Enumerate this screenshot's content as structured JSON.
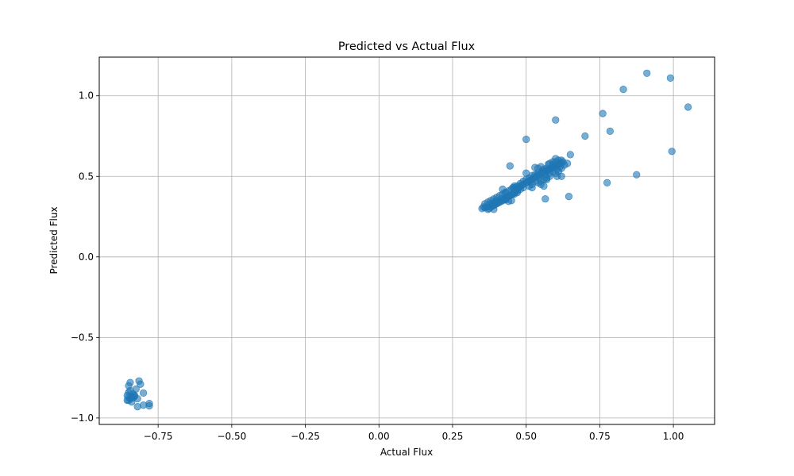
{
  "colors": {
    "point": "#1f77b4",
    "grid": "#b0b0b0",
    "axis": "#000000",
    "background": "#ffffff"
  },
  "chart_data": {
    "type": "scatter",
    "title": "Predicted vs Actual Flux",
    "xlabel": "Actual Flux",
    "ylabel": "Predicted Flux",
    "xlim": [
      -0.95,
      1.14
    ],
    "ylim": [
      -1.04,
      1.24
    ],
    "grid": true,
    "point_alpha": 0.6,
    "x_ticks": [
      {
        "value": -0.75,
        "label": "−0.75"
      },
      {
        "value": -0.5,
        "label": "−0.50"
      },
      {
        "value": -0.25,
        "label": "−0.25"
      },
      {
        "value": 0.0,
        "label": "0.00"
      },
      {
        "value": 0.25,
        "label": "0.25"
      },
      {
        "value": 0.5,
        "label": "0.50"
      },
      {
        "value": 0.75,
        "label": "0.75"
      },
      {
        "value": 1.0,
        "label": "1.00"
      }
    ],
    "y_ticks": [
      {
        "value": -1.0,
        "label": "−1.0"
      },
      {
        "value": -0.5,
        "label": "−0.5"
      },
      {
        "value": 0.0,
        "label": "0.0"
      },
      {
        "value": 0.5,
        "label": "0.5"
      },
      {
        "value": 1.0,
        "label": "1.0"
      }
    ],
    "points": [
      [
        -0.85,
        -0.8
      ],
      [
        -0.845,
        -0.78
      ],
      [
        -0.85,
        -0.84
      ],
      [
        -0.855,
        -0.86
      ],
      [
        -0.85,
        -0.87
      ],
      [
        -0.845,
        -0.88
      ],
      [
        -0.85,
        -0.89
      ],
      [
        -0.84,
        -0.87
      ],
      [
        -0.83,
        -0.86
      ],
      [
        -0.835,
        -0.85
      ],
      [
        -0.82,
        -0.88
      ],
      [
        -0.825,
        -0.82
      ],
      [
        -0.815,
        -0.77
      ],
      [
        -0.81,
        -0.79
      ],
      [
        -0.8,
        -0.845
      ],
      [
        -0.82,
        -0.93
      ],
      [
        -0.8,
        -0.92
      ],
      [
        -0.78,
        -0.91
      ],
      [
        -0.78,
        -0.925
      ],
      [
        -0.84,
        -0.9
      ],
      [
        -0.845,
        -0.83
      ],
      [
        -0.855,
        -0.89
      ],
      [
        -0.835,
        -0.875
      ],
      [
        -0.83,
        -0.865
      ],
      [
        0.35,
        0.3
      ],
      [
        0.355,
        0.31
      ],
      [
        0.36,
        0.305
      ],
      [
        0.365,
        0.31
      ],
      [
        0.37,
        0.295
      ],
      [
        0.375,
        0.3
      ],
      [
        0.38,
        0.31
      ],
      [
        0.385,
        0.315
      ],
      [
        0.39,
        0.32
      ],
      [
        0.39,
        0.295
      ],
      [
        0.395,
        0.325
      ],
      [
        0.4,
        0.33
      ],
      [
        0.405,
        0.335
      ],
      [
        0.41,
        0.34
      ],
      [
        0.415,
        0.345
      ],
      [
        0.42,
        0.35
      ],
      [
        0.425,
        0.355
      ],
      [
        0.43,
        0.36
      ],
      [
        0.435,
        0.37
      ],
      [
        0.44,
        0.375
      ],
      [
        0.445,
        0.38
      ],
      [
        0.45,
        0.385
      ],
      [
        0.455,
        0.39
      ],
      [
        0.46,
        0.4
      ],
      [
        0.465,
        0.41
      ],
      [
        0.47,
        0.42
      ],
      [
        0.475,
        0.43
      ],
      [
        0.48,
        0.44
      ],
      [
        0.485,
        0.445
      ],
      [
        0.49,
        0.45
      ],
      [
        0.5,
        0.46
      ],
      [
        0.505,
        0.465
      ],
      [
        0.51,
        0.47
      ],
      [
        0.515,
        0.475
      ],
      [
        0.52,
        0.48
      ],
      [
        0.525,
        0.49
      ],
      [
        0.53,
        0.495
      ],
      [
        0.535,
        0.5
      ],
      [
        0.54,
        0.505
      ],
      [
        0.545,
        0.51
      ],
      [
        0.55,
        0.515
      ],
      [
        0.555,
        0.52
      ],
      [
        0.56,
        0.525
      ],
      [
        0.565,
        0.53
      ],
      [
        0.57,
        0.535
      ],
      [
        0.575,
        0.54
      ],
      [
        0.58,
        0.545
      ],
      [
        0.585,
        0.55
      ],
      [
        0.59,
        0.555
      ],
      [
        0.595,
        0.56
      ],
      [
        0.6,
        0.565
      ],
      [
        0.605,
        0.57
      ],
      [
        0.61,
        0.575
      ],
      [
        0.615,
        0.58
      ],
      [
        0.62,
        0.585
      ],
      [
        0.625,
        0.59
      ],
      [
        0.61,
        0.6
      ],
      [
        0.6,
        0.61
      ],
      [
        0.59,
        0.59
      ],
      [
        0.575,
        0.575
      ],
      [
        0.57,
        0.55
      ],
      [
        0.555,
        0.535
      ],
      [
        0.54,
        0.52
      ],
      [
        0.53,
        0.51
      ],
      [
        0.52,
        0.505
      ],
      [
        0.51,
        0.49
      ],
      [
        0.5,
        0.48
      ],
      [
        0.49,
        0.47
      ],
      [
        0.48,
        0.455
      ],
      [
        0.47,
        0.44
      ],
      [
        0.46,
        0.43
      ],
      [
        0.45,
        0.42
      ],
      [
        0.44,
        0.41
      ],
      [
        0.43,
        0.4
      ],
      [
        0.42,
        0.39
      ],
      [
        0.41,
        0.38
      ],
      [
        0.4,
        0.37
      ],
      [
        0.39,
        0.36
      ],
      [
        0.38,
        0.35
      ],
      [
        0.37,
        0.34
      ],
      [
        0.36,
        0.33
      ],
      [
        0.45,
        0.35
      ],
      [
        0.44,
        0.345
      ],
      [
        0.43,
        0.355
      ],
      [
        0.42,
        0.42
      ],
      [
        0.43,
        0.4
      ],
      [
        0.46,
        0.39
      ],
      [
        0.47,
        0.4
      ],
      [
        0.53,
        0.555
      ],
      [
        0.54,
        0.55
      ],
      [
        0.55,
        0.56
      ],
      [
        0.56,
        0.545
      ],
      [
        0.58,
        0.58
      ],
      [
        0.59,
        0.575
      ],
      [
        0.6,
        0.59
      ],
      [
        0.62,
        0.6
      ],
      [
        0.63,
        0.57
      ],
      [
        0.62,
        0.55
      ],
      [
        0.61,
        0.53
      ],
      [
        0.6,
        0.52
      ],
      [
        0.58,
        0.5
      ],
      [
        0.57,
        0.49
      ],
      [
        0.56,
        0.48
      ],
      [
        0.55,
        0.47
      ],
      [
        0.54,
        0.46
      ],
      [
        0.52,
        0.45
      ],
      [
        0.51,
        0.44
      ],
      [
        0.5,
        0.52
      ],
      [
        0.49,
        0.43
      ],
      [
        0.48,
        0.42
      ],
      [
        0.47,
        0.41
      ],
      [
        0.46,
        0.44
      ],
      [
        0.455,
        0.43
      ],
      [
        0.53,
        0.47
      ],
      [
        0.545,
        0.49
      ],
      [
        0.565,
        0.51
      ],
      [
        0.58,
        0.52
      ],
      [
        0.59,
        0.53
      ],
      [
        0.605,
        0.545
      ],
      [
        0.615,
        0.56
      ],
      [
        0.62,
        0.5
      ],
      [
        0.605,
        0.5
      ],
      [
        0.56,
        0.44
      ],
      [
        0.55,
        0.45
      ],
      [
        0.52,
        0.43
      ],
      [
        0.57,
        0.48
      ],
      [
        0.43,
        0.37
      ],
      [
        0.415,
        0.36
      ],
      [
        0.4,
        0.35
      ],
      [
        0.395,
        0.34
      ],
      [
        0.385,
        0.335
      ],
      [
        0.375,
        0.325
      ],
      [
        0.445,
        0.565
      ],
      [
        0.5,
        0.73
      ],
      [
        0.6,
        0.85
      ],
      [
        0.65,
        0.635
      ],
      [
        0.64,
        0.58
      ],
      [
        0.565,
        0.36
      ],
      [
        0.645,
        0.375
      ],
      [
        0.7,
        0.75
      ],
      [
        0.76,
        0.89
      ],
      [
        0.785,
        0.78
      ],
      [
        0.775,
        0.46
      ],
      [
        0.83,
        1.04
      ],
      [
        0.875,
        0.51
      ],
      [
        0.91,
        1.14
      ],
      [
        0.99,
        1.11
      ],
      [
        0.995,
        0.655
      ],
      [
        1.05,
        0.93
      ]
    ]
  }
}
